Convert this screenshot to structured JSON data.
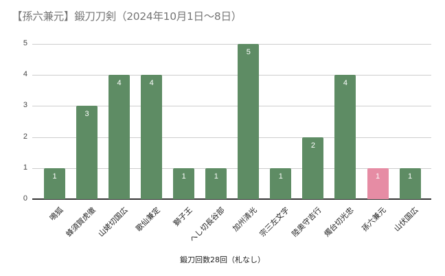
{
  "chart_data": {
    "type": "bar",
    "title": "【孫六兼元】鍛刀刀剣（2024年10月1日～8日）",
    "xlabel": "鍛刀回数28回（札なし）",
    "ylabel": "",
    "ylim": [
      0,
      5
    ],
    "yticks": [
      "0",
      "1",
      "2",
      "3",
      "4",
      "5"
    ],
    "grid": true,
    "legend": "none",
    "data_labels": true,
    "categories": [
      "鳴狐",
      "蜂須賀虎徹",
      "山姥切国広",
      "歌仙兼定",
      "獅子王",
      "へし切長谷部",
      "加州清光",
      "宗三左文字",
      "陸奥守吉行",
      "燭台切光忠",
      "孫六兼元",
      "山伏国広"
    ],
    "values": [
      1,
      3,
      4,
      4,
      1,
      1,
      5,
      1,
      2,
      4,
      1,
      1
    ],
    "value_labels": [
      "1",
      "3",
      "4",
      "4",
      "1",
      "1",
      "5",
      "1",
      "2",
      "4",
      "1",
      "1"
    ],
    "colors": [
      "#5e8c64",
      "#5e8c64",
      "#5e8c64",
      "#5e8c64",
      "#5e8c64",
      "#5e8c64",
      "#5e8c64",
      "#5e8c64",
      "#5e8c64",
      "#5e8c64",
      "#e68ca4",
      "#5e8c64"
    ],
    "highlight_color": "#e68ca4",
    "bar_color": "#5e8c64"
  }
}
